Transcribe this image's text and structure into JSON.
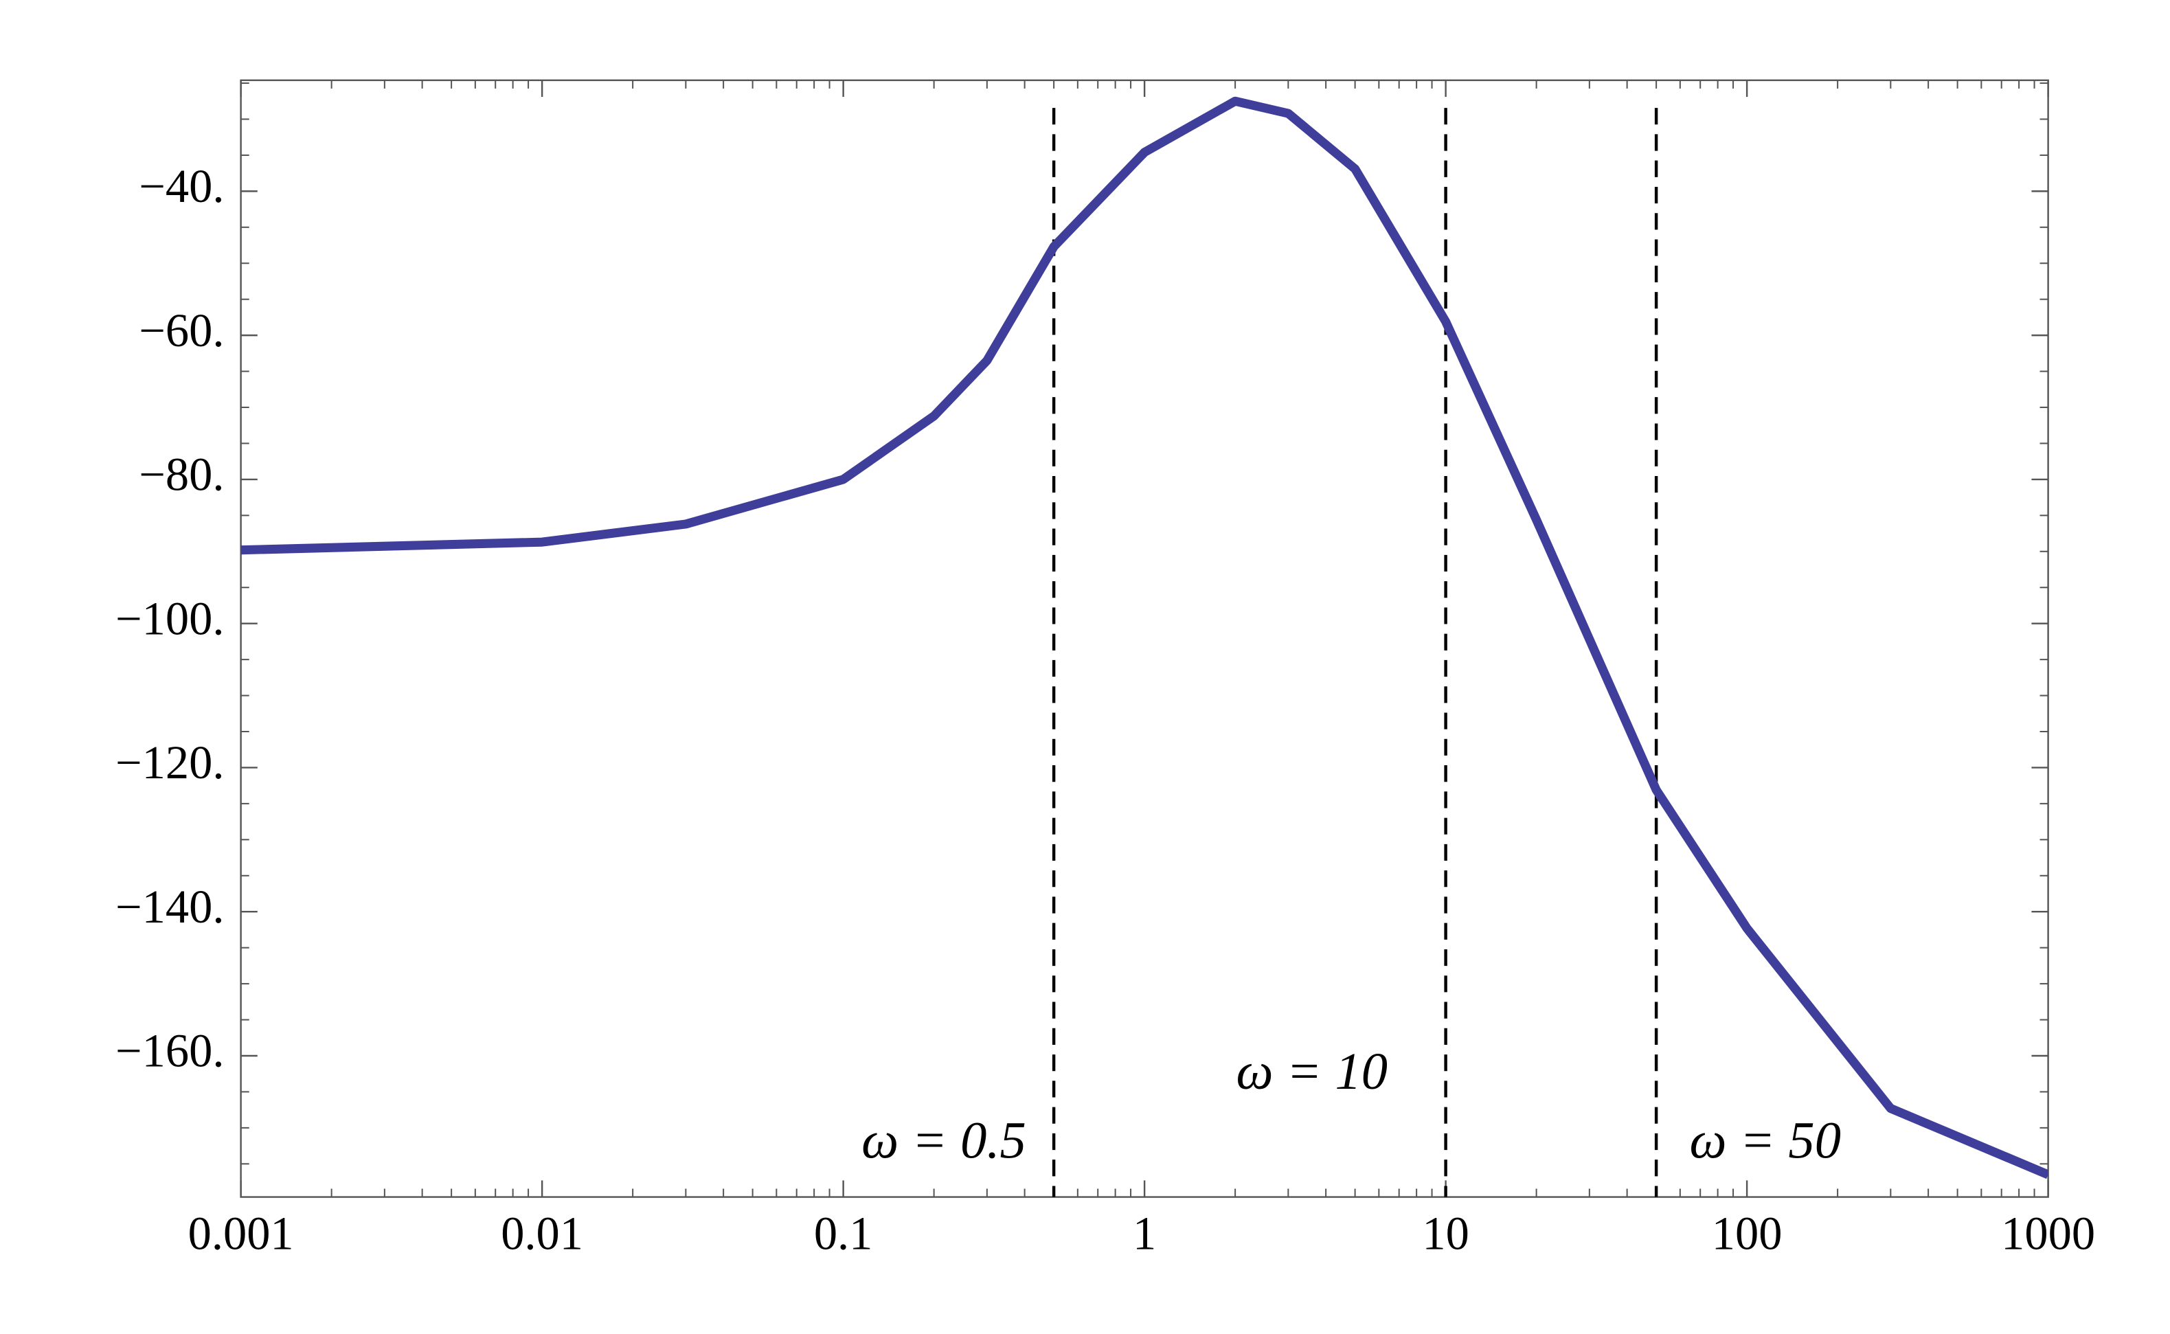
{
  "chart_data": {
    "type": "line",
    "x": [
      0.001,
      0.01,
      0.03,
      0.1,
      0.2,
      0.3,
      0.5,
      1,
      2,
      3,
      5,
      10,
      20,
      50,
      100,
      300,
      1000
    ],
    "values": [
      -89.8,
      -88.7,
      -86.2,
      -80,
      -71.2,
      -63.5,
      -47.7,
      -34.6,
      -27.5,
      -29.2,
      -36.9,
      -58.1,
      -85.6,
      -123.1,
      -142.3,
      -167.3,
      -176.5
    ],
    "color": "#3f3f9b",
    "xscale": "log",
    "xlim": [
      0.001,
      1000
    ],
    "ylim": [
      -179.6,
      -24.6
    ],
    "xticks": [
      0.001,
      0.01,
      0.1,
      1,
      10,
      100,
      1000
    ],
    "yticks": [
      {
        "value": -40,
        "label": "−40."
      },
      {
        "value": -60,
        "label": "−60."
      },
      {
        "value": -80,
        "label": "−80."
      },
      {
        "value": -100,
        "label": "−100."
      },
      {
        "value": -120,
        "label": "−120."
      },
      {
        "value": -140,
        "label": "−140."
      },
      {
        "value": -160,
        "label": "−160."
      }
    ],
    "vlines": [
      0.5,
      10,
      50
    ],
    "annotations": [
      "ω = 0.5",
      "ω = 10",
      "ω = 50"
    ]
  }
}
